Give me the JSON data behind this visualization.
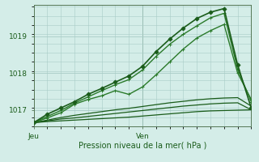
{
  "title": "",
  "xlabel": "Pression niveau de la mer( hPa )",
  "background_color": "#d4ede8",
  "grid_color": "#a8ccc6",
  "line_color_dark": "#1a5c1a",
  "line_color_mid": "#2a7a2a",
  "ylim": [
    1016.55,
    1019.85
  ],
  "xlim": [
    0,
    48
  ],
  "x_ticks": [
    0,
    24
  ],
  "x_tick_labels": [
    "Jeu",
    "Ven"
  ],
  "yticks": [
    1017,
    1018,
    1019
  ],
  "total_hours": 48,
  "vline_x": 24,
  "series": {
    "flat1": {
      "x": [
        0,
        3,
        6,
        9,
        12,
        15,
        18,
        21,
        24,
        27,
        30,
        33,
        36,
        39,
        42,
        45,
        48
      ],
      "y": [
        1016.65,
        1016.68,
        1016.7,
        1016.72,
        1016.74,
        1016.76,
        1016.78,
        1016.8,
        1016.83,
        1016.86,
        1016.89,
        1016.92,
        1016.95,
        1016.97,
        1016.98,
        1016.99,
        1017.0
      ],
      "lw": 0.9,
      "marker": null,
      "color": "#1a5c1a"
    },
    "flat2": {
      "x": [
        0,
        3,
        6,
        9,
        12,
        15,
        18,
        21,
        24,
        27,
        30,
        33,
        36,
        39,
        42,
        45,
        48
      ],
      "y": [
        1016.65,
        1016.7,
        1016.75,
        1016.78,
        1016.82,
        1016.86,
        1016.9,
        1016.94,
        1016.98,
        1017.02,
        1017.06,
        1017.1,
        1017.13,
        1017.16,
        1017.18,
        1017.19,
        1017.0
      ],
      "lw": 0.9,
      "marker": null,
      "color": "#1a5c1a"
    },
    "flat3": {
      "x": [
        0,
        3,
        6,
        9,
        12,
        15,
        18,
        21,
        24,
        27,
        30,
        33,
        36,
        39,
        42,
        45,
        48
      ],
      "y": [
        1016.65,
        1016.72,
        1016.79,
        1016.85,
        1016.9,
        1016.95,
        1017.0,
        1017.04,
        1017.09,
        1017.14,
        1017.19,
        1017.23,
        1017.27,
        1017.3,
        1017.32,
        1017.33,
        1017.1
      ],
      "lw": 0.9,
      "marker": null,
      "color": "#1a5c1a"
    },
    "wavy": {
      "x": [
        0,
        3,
        6,
        9,
        12,
        15,
        18,
        21,
        24,
        27,
        30,
        33,
        36,
        39,
        42,
        45,
        48
      ],
      "y": [
        1016.65,
        1016.78,
        1016.92,
        1017.15,
        1017.28,
        1017.38,
        1017.52,
        1017.42,
        1017.62,
        1017.95,
        1018.3,
        1018.65,
        1018.95,
        1019.15,
        1019.32,
        1018.0,
        1017.28
      ],
      "lw": 1.0,
      "marker": "+",
      "color": "#2a7a2a"
    },
    "steep1": {
      "x": [
        0,
        3,
        6,
        9,
        12,
        15,
        18,
        21,
        24,
        27,
        30,
        33,
        36,
        39,
        42,
        45,
        48
      ],
      "y": [
        1016.65,
        1016.82,
        1016.98,
        1017.18,
        1017.35,
        1017.52,
        1017.68,
        1017.82,
        1018.08,
        1018.45,
        1018.78,
        1019.05,
        1019.28,
        1019.5,
        1019.62,
        1018.1,
        1017.22
      ],
      "lw": 1.0,
      "marker": "+",
      "color": "#2a7a2a"
    },
    "steep2": {
      "x": [
        0,
        3,
        6,
        9,
        12,
        15,
        18,
        21,
        24,
        27,
        30,
        33,
        36,
        39,
        42,
        45,
        48
      ],
      "y": [
        1016.65,
        1016.88,
        1017.05,
        1017.22,
        1017.42,
        1017.58,
        1017.75,
        1017.92,
        1018.18,
        1018.58,
        1018.92,
        1019.22,
        1019.48,
        1019.65,
        1019.75,
        1018.22,
        1017.05
      ],
      "lw": 1.2,
      "marker": "D",
      "color": "#1a5c1a"
    }
  }
}
